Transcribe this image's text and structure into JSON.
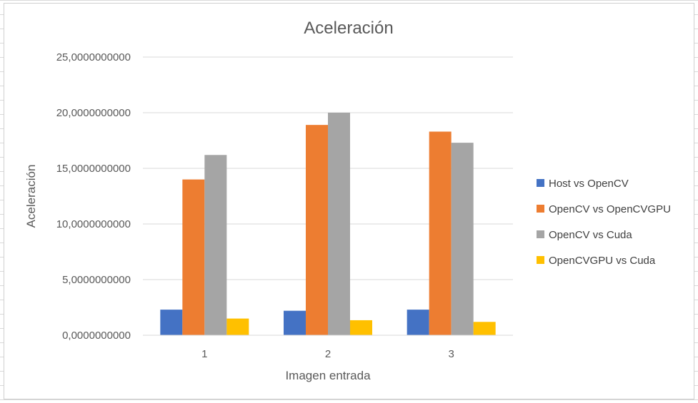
{
  "chart_data": {
    "type": "bar",
    "title": "Aceleración",
    "xlabel": "Imagen entrada",
    "ylabel": "Aceleración",
    "categories": [
      "1",
      "2",
      "3"
    ],
    "ylim": [
      0,
      25
    ],
    "yticks": [
      0,
      5,
      10,
      15,
      20,
      25
    ],
    "ytick_labels": [
      "0,0000000000",
      "5,0000000000",
      "10,0000000000",
      "15,0000000000",
      "20,0000000000",
      "25,0000000000"
    ],
    "grid": true,
    "legend_position": "right",
    "series": [
      {
        "name": "Host vs OpenCV",
        "color": "#4472C4",
        "values": [
          2.3,
          2.2,
          2.3
        ]
      },
      {
        "name": "OpenCV vs OpenCVGPU",
        "color": "#ED7D31",
        "values": [
          14.0,
          18.9,
          18.3
        ]
      },
      {
        "name": "OpenCV vs Cuda",
        "color": "#A5A5A5",
        "values": [
          16.2,
          20.0,
          17.3
        ]
      },
      {
        "name": "OpenCVGPU vs Cuda",
        "color": "#FFC000",
        "values": [
          1.5,
          1.35,
          1.2
        ]
      }
    ]
  }
}
